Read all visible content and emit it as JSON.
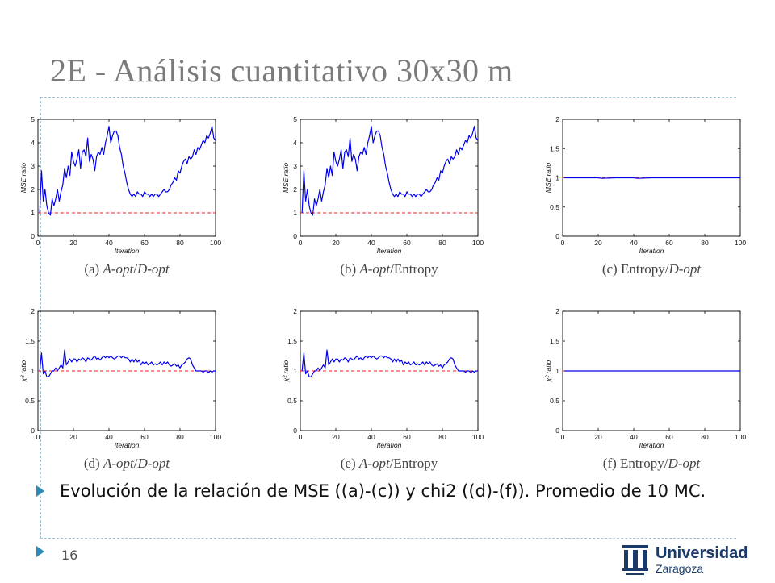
{
  "slide": {
    "title": "2E - Análisis cuantitativo 30x30 m",
    "bullet": "Evolución de la relación de  MSE ((a)-(c)) y chi2 ((d)-(f)). Promedio de 10 MC.",
    "page_number": "16",
    "logo": {
      "name": "Universidad",
      "city": "Zaragoza"
    }
  },
  "colors": {
    "series": "#0000ee",
    "reference": "#ff1a1a",
    "accent": "#2e8bb7"
  },
  "chart_data": [
    {
      "id": "a",
      "type": "line",
      "caption_tag": "(a)",
      "caption_a": "A-opt",
      "caption_sep": "/",
      "caption_b": "D-opt",
      "xlabel": "Iteration",
      "ylabel": "MSE ratio",
      "xlim": [
        0,
        100
      ],
      "ylim": [
        0,
        5
      ],
      "xticks": [
        "0",
        "20",
        "40",
        "60",
        "80",
        "100"
      ],
      "yticks": [
        "0",
        "1",
        "2",
        "3",
        "4",
        "5"
      ],
      "reference": 1,
      "series": [
        {
          "x": [
            1,
            2,
            3,
            4,
            5,
            6,
            7,
            8,
            9,
            10,
            11,
            12,
            13,
            14,
            15,
            16,
            17,
            18,
            19,
            20,
            21,
            22,
            23,
            24,
            25,
            26,
            27,
            28,
            29,
            30,
            31,
            32,
            33,
            34,
            35,
            36,
            37,
            38,
            39,
            40,
            41,
            42,
            43,
            44,
            45,
            46,
            47,
            48,
            49,
            50,
            51,
            52,
            53,
            54,
            55,
            56,
            57,
            58,
            59,
            60,
            61,
            62,
            63,
            64,
            65,
            66,
            67,
            68,
            69,
            70,
            71,
            72,
            73,
            74,
            75,
            76,
            77,
            78,
            79,
            80,
            81,
            82,
            83,
            84,
            85,
            86,
            87,
            88,
            89,
            90,
            91,
            92,
            93,
            94,
            95,
            96,
            97,
            98,
            99,
            100
          ],
          "values": [
            1.0,
            2.8,
            1.5,
            2.0,
            1.3,
            1.0,
            0.9,
            1.6,
            1.3,
            1.6,
            2.0,
            1.5,
            1.9,
            2.2,
            2.9,
            2.5,
            3.0,
            2.6,
            3.6,
            3.2,
            3.0,
            3.3,
            3.7,
            2.9,
            3.6,
            3.7,
            3.4,
            4.2,
            3.2,
            3.5,
            3.3,
            2.8,
            3.4,
            3.6,
            3.5,
            3.8,
            3.5,
            4.0,
            4.3,
            4.7,
            4.0,
            4.3,
            4.5,
            4.5,
            4.3,
            3.8,
            3.5,
            3.0,
            2.7,
            2.3,
            2.0,
            1.8,
            1.7,
            1.8,
            1.7,
            1.9,
            1.8,
            1.8,
            1.7,
            1.9,
            1.8,
            1.8,
            1.7,
            1.8,
            1.7,
            1.8,
            1.8,
            1.7,
            1.8,
            1.9,
            2.0,
            1.9,
            1.9,
            2.0,
            2.2,
            2.3,
            2.5,
            2.4,
            2.8,
            2.7,
            3.0,
            3.2,
            3.3,
            3.1,
            3.4,
            3.3,
            3.4,
            3.7,
            3.5,
            3.8,
            3.7,
            3.9,
            4.1,
            4.0,
            4.3,
            4.2,
            4.4,
            4.7,
            4.2,
            4.1
          ]
        }
      ]
    },
    {
      "id": "b",
      "type": "line",
      "caption_tag": "(b)",
      "caption_a": "A-opt",
      "caption_sep": "/",
      "caption_b": "Entropy",
      "xlabel": "Iteration",
      "ylabel": "MSE ratio",
      "xlim": [
        0,
        100
      ],
      "ylim": [
        0,
        5
      ],
      "xticks": [
        "0",
        "20",
        "40",
        "60",
        "80",
        "100"
      ],
      "yticks": [
        "0",
        "1",
        "2",
        "3",
        "4",
        "5"
      ],
      "reference": 1,
      "series": [
        {
          "x": [
            1,
            2,
            3,
            4,
            5,
            6,
            7,
            8,
            9,
            10,
            11,
            12,
            13,
            14,
            15,
            16,
            17,
            18,
            19,
            20,
            21,
            22,
            23,
            24,
            25,
            26,
            27,
            28,
            29,
            30,
            31,
            32,
            33,
            34,
            35,
            36,
            37,
            38,
            39,
            40,
            41,
            42,
            43,
            44,
            45,
            46,
            47,
            48,
            49,
            50,
            51,
            52,
            53,
            54,
            55,
            56,
            57,
            58,
            59,
            60,
            61,
            62,
            63,
            64,
            65,
            66,
            67,
            68,
            69,
            70,
            71,
            72,
            73,
            74,
            75,
            76,
            77,
            78,
            79,
            80,
            81,
            82,
            83,
            84,
            85,
            86,
            87,
            88,
            89,
            90,
            91,
            92,
            93,
            94,
            95,
            96,
            97,
            98,
            99,
            100
          ],
          "values": [
            1.0,
            2.8,
            1.5,
            2.0,
            1.3,
            1.0,
            0.9,
            1.6,
            1.3,
            1.6,
            2.0,
            1.5,
            1.9,
            2.2,
            2.9,
            2.5,
            3.0,
            2.6,
            3.6,
            3.2,
            3.0,
            3.3,
            3.7,
            2.9,
            3.6,
            3.7,
            3.4,
            4.2,
            3.2,
            3.5,
            3.3,
            2.8,
            3.4,
            3.6,
            3.5,
            3.8,
            3.5,
            4.0,
            4.3,
            4.7,
            4.0,
            4.3,
            4.5,
            4.5,
            4.3,
            3.8,
            3.5,
            3.0,
            2.7,
            2.3,
            2.0,
            1.8,
            1.7,
            1.8,
            1.7,
            1.9,
            1.8,
            1.8,
            1.7,
            1.9,
            1.8,
            1.8,
            1.7,
            1.8,
            1.7,
            1.8,
            1.8,
            1.7,
            1.8,
            1.9,
            2.0,
            1.9,
            1.9,
            2.0,
            2.2,
            2.3,
            2.5,
            2.4,
            2.8,
            2.7,
            3.0,
            3.2,
            3.3,
            3.1,
            3.4,
            3.3,
            3.4,
            3.7,
            3.5,
            3.8,
            3.7,
            3.9,
            4.1,
            4.0,
            4.3,
            4.2,
            4.4,
            4.7,
            4.2,
            4.1
          ]
        }
      ]
    },
    {
      "id": "c",
      "type": "line",
      "caption_tag": "(c)",
      "caption_a": "Entropy",
      "caption_sep": "/",
      "caption_b": "D-opt",
      "xlabel": "Iteration",
      "ylabel": "MSE ratio",
      "xlim": [
        0,
        100
      ],
      "ylim": [
        0,
        2
      ],
      "xticks": [
        "0",
        "20",
        "40",
        "60",
        "80",
        "100"
      ],
      "yticks": [
        "0",
        "0.5",
        "1",
        "1.5",
        "2"
      ],
      "reference": 1,
      "series": [
        {
          "x": [
            1,
            10,
            20,
            22,
            30,
            40,
            42,
            50,
            60,
            70,
            80,
            90,
            100
          ],
          "values": [
            1.0,
            1.0,
            1.0,
            0.99,
            1.0,
            1.0,
            0.99,
            1.0,
            1.0,
            1.0,
            1.0,
            1.0,
            1.0
          ]
        }
      ]
    },
    {
      "id": "d",
      "type": "line",
      "caption_tag": "(d)",
      "caption_a": "A-opt",
      "caption_sep": "/",
      "caption_b": "D-opt",
      "xlabel": "Iteration",
      "ylabel": "χ² ratio",
      "xlim": [
        0,
        100
      ],
      "ylim": [
        0,
        2
      ],
      "xticks": [
        "0",
        "20",
        "40",
        "60",
        "80",
        "100"
      ],
      "yticks": [
        "0",
        "0.5",
        "1",
        "1.5",
        "2"
      ],
      "reference": 1,
      "series": [
        {
          "x": [
            1,
            2,
            3,
            4,
            5,
            6,
            7,
            8,
            9,
            10,
            11,
            12,
            13,
            14,
            15,
            16,
            17,
            18,
            19,
            20,
            21,
            22,
            23,
            24,
            25,
            26,
            27,
            28,
            29,
            30,
            31,
            32,
            33,
            34,
            35,
            36,
            37,
            38,
            39,
            40,
            41,
            42,
            43,
            44,
            45,
            46,
            47,
            48,
            49,
            50,
            51,
            52,
            53,
            54,
            55,
            56,
            57,
            58,
            59,
            60,
            61,
            62,
            63,
            64,
            65,
            66,
            67,
            68,
            69,
            70,
            71,
            72,
            73,
            74,
            75,
            76,
            77,
            78,
            79,
            80,
            81,
            82,
            83,
            84,
            85,
            86,
            87,
            88,
            89,
            90,
            91,
            92,
            93,
            94,
            95,
            96,
            97,
            98,
            99,
            100
          ],
          "values": [
            1.0,
            1.3,
            0.95,
            1.0,
            0.9,
            0.9,
            0.95,
            1.0,
            1.0,
            1.05,
            1.0,
            1.05,
            1.1,
            1.05,
            1.35,
            1.1,
            1.15,
            1.2,
            1.15,
            1.2,
            1.2,
            1.15,
            1.2,
            1.18,
            1.22,
            1.2,
            1.15,
            1.22,
            1.2,
            1.18,
            1.22,
            1.25,
            1.2,
            1.22,
            1.18,
            1.22,
            1.25,
            1.22,
            1.25,
            1.22,
            1.25,
            1.22,
            1.2,
            1.22,
            1.25,
            1.25,
            1.22,
            1.25,
            1.22,
            1.22,
            1.2,
            1.15,
            1.2,
            1.15,
            1.2,
            1.15,
            1.18,
            1.1,
            1.15,
            1.12,
            1.15,
            1.1,
            1.12,
            1.15,
            1.1,
            1.12,
            1.1,
            1.12,
            1.15,
            1.1,
            1.15,
            1.12,
            1.15,
            1.1,
            1.08,
            1.1,
            1.12,
            1.08,
            1.1,
            1.05,
            1.1,
            1.12,
            1.15,
            1.2,
            1.22,
            1.2,
            1.1,
            1.05,
            1.0,
            1.0,
            1.0,
            1.0,
            0.98,
            1.0,
            1.0,
            0.97,
            1.0,
            0.98,
            1.0,
            1.0
          ]
        }
      ]
    },
    {
      "id": "e",
      "type": "line",
      "caption_tag": "(e)",
      "caption_a": "A-opt",
      "caption_sep": "/",
      "caption_b": "Entropy",
      "xlabel": "Iteration",
      "ylabel": "χ² ratio",
      "xlim": [
        0,
        100
      ],
      "ylim": [
        0,
        2
      ],
      "xticks": [
        "0",
        "20",
        "40",
        "60",
        "80",
        "100"
      ],
      "yticks": [
        "0",
        "0.5",
        "1",
        "1.5",
        "2"
      ],
      "reference": 1,
      "series": [
        {
          "x": [
            1,
            2,
            3,
            4,
            5,
            6,
            7,
            8,
            9,
            10,
            11,
            12,
            13,
            14,
            15,
            16,
            17,
            18,
            19,
            20,
            21,
            22,
            23,
            24,
            25,
            26,
            27,
            28,
            29,
            30,
            31,
            32,
            33,
            34,
            35,
            36,
            37,
            38,
            39,
            40,
            41,
            42,
            43,
            44,
            45,
            46,
            47,
            48,
            49,
            50,
            51,
            52,
            53,
            54,
            55,
            56,
            57,
            58,
            59,
            60,
            61,
            62,
            63,
            64,
            65,
            66,
            67,
            68,
            69,
            70,
            71,
            72,
            73,
            74,
            75,
            76,
            77,
            78,
            79,
            80,
            81,
            82,
            83,
            84,
            85,
            86,
            87,
            88,
            89,
            90,
            91,
            92,
            93,
            94,
            95,
            96,
            97,
            98,
            99,
            100
          ],
          "values": [
            1.0,
            1.3,
            0.95,
            1.0,
            0.9,
            0.9,
            0.95,
            1.0,
            1.0,
            1.05,
            1.0,
            1.05,
            1.1,
            1.05,
            1.35,
            1.1,
            1.15,
            1.2,
            1.15,
            1.2,
            1.2,
            1.15,
            1.2,
            1.18,
            1.22,
            1.2,
            1.15,
            1.22,
            1.2,
            1.18,
            1.22,
            1.25,
            1.2,
            1.22,
            1.18,
            1.22,
            1.25,
            1.22,
            1.25,
            1.22,
            1.25,
            1.22,
            1.2,
            1.22,
            1.25,
            1.25,
            1.22,
            1.25,
            1.22,
            1.22,
            1.2,
            1.15,
            1.2,
            1.15,
            1.2,
            1.15,
            1.18,
            1.1,
            1.15,
            1.12,
            1.15,
            1.1,
            1.12,
            1.15,
            1.1,
            1.12,
            1.1,
            1.12,
            1.15,
            1.1,
            1.15,
            1.12,
            1.15,
            1.1,
            1.08,
            1.1,
            1.12,
            1.08,
            1.1,
            1.05,
            1.1,
            1.12,
            1.15,
            1.2,
            1.22,
            1.2,
            1.1,
            1.05,
            1.0,
            1.0,
            1.0,
            1.0,
            0.98,
            1.0,
            1.0,
            0.97,
            1.0,
            0.98,
            1.0,
            1.0
          ]
        }
      ]
    },
    {
      "id": "f",
      "type": "line",
      "caption_tag": "(f)",
      "caption_a": "Entropy",
      "caption_sep": "/",
      "caption_b": "D-opt",
      "xlabel": "Iteration",
      "ylabel": "χ² ratio",
      "xlim": [
        0,
        100
      ],
      "ylim": [
        0,
        2
      ],
      "xticks": [
        "0",
        "20",
        "40",
        "60",
        "80",
        "100"
      ],
      "yticks": [
        "0",
        "0.5",
        "1",
        "1.5",
        "2"
      ],
      "reference": 1,
      "series": [
        {
          "x": [
            1,
            20,
            40,
            60,
            80,
            100
          ],
          "values": [
            1.0,
            1.0,
            1.0,
            1.0,
            1.0,
            1.0
          ]
        }
      ]
    }
  ]
}
